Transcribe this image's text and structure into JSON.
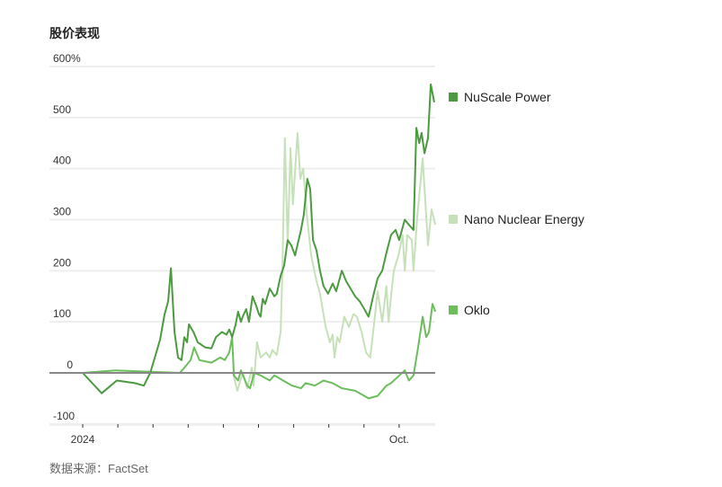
{
  "chart_data": {
    "type": "line",
    "title": "股价表现",
    "source": "数据来源：FactSet",
    "xlabel": "",
    "ylabel": "",
    "x_unit": "months since Jan 1 2024",
    "xlim": [
      0,
      10.05
    ],
    "ylim": [
      -100,
      600
    ],
    "y_ticks": [
      {
        "value": 600,
        "label": "600%"
      },
      {
        "value": 500,
        "label": "500"
      },
      {
        "value": 400,
        "label": "400"
      },
      {
        "value": 300,
        "label": "300"
      },
      {
        "value": 200,
        "label": "200"
      },
      {
        "value": 100,
        "label": "100"
      },
      {
        "value": 0,
        "label": "0"
      },
      {
        "value": -100,
        "label": "-100"
      }
    ],
    "x_ticks": [
      {
        "value": 0,
        "label": "2024"
      },
      {
        "value": 1,
        "label": ""
      },
      {
        "value": 2,
        "label": ""
      },
      {
        "value": 3,
        "label": ""
      },
      {
        "value": 4,
        "label": ""
      },
      {
        "value": 5,
        "label": ""
      },
      {
        "value": 6,
        "label": ""
      },
      {
        "value": 7,
        "label": ""
      },
      {
        "value": 8,
        "label": ""
      },
      {
        "value": 9,
        "label": "Oct."
      }
    ],
    "grid": true,
    "legend_placement": "right",
    "series": [
      {
        "name": "NuScale Power",
        "color": "#4b9a40",
        "x": [
          0,
          0.54,
          0.97,
          1.48,
          1.74,
          1.92,
          2.05,
          2.2,
          2.33,
          2.43,
          2.51,
          2.61,
          2.71,
          2.81,
          2.89,
          2.97,
          3.02,
          3.15,
          3.27,
          3.48,
          3.66,
          3.79,
          3.96,
          4.09,
          4.17,
          4.25,
          4.35,
          4.42,
          4.5,
          4.55,
          4.65,
          4.73,
          4.83,
          4.94,
          5.01,
          5.06,
          5.12,
          5.19,
          5.32,
          5.45,
          5.52,
          5.63,
          5.73,
          5.83,
          5.93,
          6.04,
          6.09,
          6.21,
          6.29,
          6.39,
          6.47,
          6.55,
          6.65,
          6.75,
          6.85,
          6.98,
          7.11,
          7.21,
          7.37,
          7.49,
          7.62,
          7.75,
          7.88,
          8.01,
          8.13,
          8.26,
          8.39,
          8.52,
          8.64,
          8.77,
          8.9,
          9.0,
          9.16,
          9.28,
          9.41,
          9.49,
          9.57,
          9.64,
          9.72,
          9.82,
          9.9,
          10.0
        ],
        "y": [
          0,
          -40,
          -15,
          -20,
          -25,
          0,
          30,
          65,
          115,
          140,
          205,
          80,
          30,
          25,
          70,
          60,
          95,
          80,
          60,
          50,
          48,
          70,
          80,
          75,
          85,
          70,
          95,
          120,
          100,
          110,
          125,
          100,
          150,
          130,
          115,
          110,
          145,
          135,
          165,
          150,
          155,
          190,
          210,
          260,
          250,
          230,
          245,
          280,
          310,
          380,
          360,
          260,
          240,
          200,
          170,
          155,
          175,
          160,
          200,
          180,
          165,
          150,
          140,
          125,
          110,
          150,
          185,
          200,
          235,
          270,
          280,
          260,
          300,
          290,
          280,
          480,
          450,
          470,
          430,
          460,
          565,
          530
        ]
      },
      {
        "name": "Nano Nuclear Energy",
        "color": "#c6e1b9",
        "x": [
          4.27,
          4.4,
          4.55,
          4.68,
          4.81,
          4.86,
          4.96,
          5.06,
          5.22,
          5.32,
          5.4,
          5.52,
          5.63,
          5.68,
          5.75,
          5.83,
          5.91,
          5.98,
          6.11,
          6.19,
          6.27,
          6.39,
          6.5,
          6.65,
          6.75,
          6.91,
          7.03,
          7.11,
          7.16,
          7.24,
          7.31,
          7.44,
          7.57,
          7.7,
          7.8,
          7.93,
          8.06,
          8.18,
          8.26,
          8.39,
          8.52,
          8.64,
          8.7,
          8.77,
          8.85,
          8.98,
          9.1,
          9.16,
          9.23,
          9.36,
          9.41,
          9.51,
          9.67,
          9.82,
          9.92,
          10.03
        ],
        "y": [
          0,
          -35,
          0,
          -30,
          10,
          -25,
          60,
          30,
          40,
          30,
          45,
          35,
          80,
          200,
          460,
          250,
          440,
          330,
          470,
          380,
          400,
          300,
          230,
          180,
          155,
          90,
          60,
          75,
          30,
          70,
          60,
          110,
          90,
          115,
          110,
          80,
          40,
          30,
          80,
          160,
          100,
          170,
          100,
          150,
          200,
          230,
          270,
          200,
          270,
          260,
          200,
          300,
          420,
          250,
          320,
          290
        ]
      },
      {
        "name": "Oklo",
        "color": "#6cbd5c",
        "x": [
          0,
          0.92,
          2.76,
          2.89,
          3.07,
          3.17,
          3.32,
          3.66,
          3.91,
          4.04,
          4.17,
          4.25,
          4.3,
          4.42,
          4.5,
          4.68,
          4.76,
          4.88,
          5.06,
          5.32,
          5.45,
          5.7,
          5.96,
          6.21,
          6.34,
          6.6,
          6.85,
          7.11,
          7.37,
          7.75,
          8.01,
          8.13,
          8.39,
          8.64,
          8.77,
          9.16,
          9.28,
          9.41,
          9.54,
          9.67,
          9.77,
          9.85,
          9.95,
          10.03
        ],
        "y": [
          0,
          5,
          0,
          10,
          25,
          50,
          25,
          20,
          30,
          25,
          40,
          70,
          -5,
          -15,
          5,
          -25,
          -30,
          0,
          -5,
          -15,
          -5,
          -15,
          -25,
          -30,
          -20,
          -25,
          -15,
          -20,
          -30,
          -35,
          -45,
          -50,
          -45,
          -25,
          -20,
          5,
          -15,
          -5,
          50,
          110,
          70,
          80,
          135,
          120
        ]
      }
    ]
  }
}
